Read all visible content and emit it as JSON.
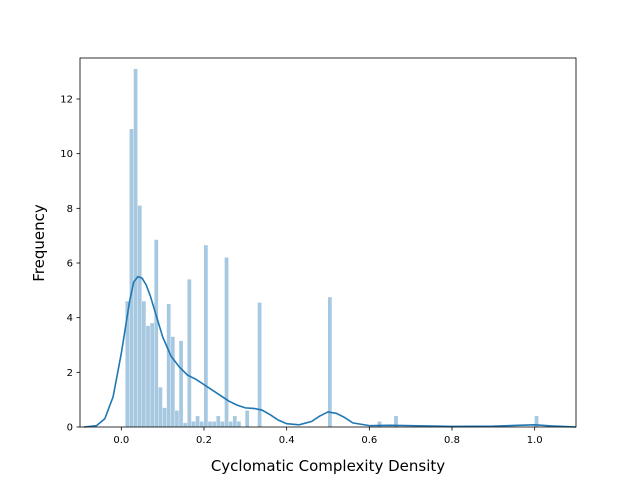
{
  "chart_data": {
    "type": "bar",
    "subtype": "histogram-with-kde",
    "title": "",
    "xlabel": "Cyclomatic Complexity Density",
    "ylabel": "Frequency",
    "xlim": [
      -0.1,
      1.1
    ],
    "ylim": [
      0,
      13.5
    ],
    "xticks": [
      "0.0",
      "0.2",
      "0.4",
      "0.6",
      "0.8",
      "1.0"
    ],
    "xtick_values": [
      0.0,
      0.2,
      0.4,
      0.6,
      0.8,
      1.0
    ],
    "yticks": [
      "0",
      "2",
      "4",
      "6",
      "8",
      "10",
      "12"
    ],
    "ytick_values": [
      0,
      2,
      4,
      6,
      8,
      10,
      12
    ],
    "grid": false,
    "bar_color": "#a6c8e0",
    "line_color": "#1f77b4",
    "bin_width": 0.01,
    "bins": [
      {
        "x": 0.01,
        "height": 4.6
      },
      {
        "x": 0.02,
        "height": 10.9
      },
      {
        "x": 0.03,
        "height": 13.1
      },
      {
        "x": 0.04,
        "height": 8.1
      },
      {
        "x": 0.05,
        "height": 4.6
      },
      {
        "x": 0.06,
        "height": 3.7
      },
      {
        "x": 0.07,
        "height": 3.8
      },
      {
        "x": 0.08,
        "height": 6.85
      },
      {
        "x": 0.09,
        "height": 1.45
      },
      {
        "x": 0.1,
        "height": 0.7
      },
      {
        "x": 0.11,
        "height": 4.5
      },
      {
        "x": 0.12,
        "height": 3.3
      },
      {
        "x": 0.13,
        "height": 0.6
      },
      {
        "x": 0.14,
        "height": 3.15
      },
      {
        "x": 0.15,
        "height": 0.15
      },
      {
        "x": 0.16,
        "height": 5.4
      },
      {
        "x": 0.17,
        "height": 0.2
      },
      {
        "x": 0.18,
        "height": 0.4
      },
      {
        "x": 0.19,
        "height": 0.2
      },
      {
        "x": 0.2,
        "height": 6.65
      },
      {
        "x": 0.21,
        "height": 0.2
      },
      {
        "x": 0.22,
        "height": 0.2
      },
      {
        "x": 0.23,
        "height": 0.4
      },
      {
        "x": 0.24,
        "height": 0.2
      },
      {
        "x": 0.25,
        "height": 6.2
      },
      {
        "x": 0.26,
        "height": 0.2
      },
      {
        "x": 0.27,
        "height": 0.4
      },
      {
        "x": 0.28,
        "height": 0.2
      },
      {
        "x": 0.3,
        "height": 0.6
      },
      {
        "x": 0.33,
        "height": 4.55
      },
      {
        "x": 0.5,
        "height": 4.75
      },
      {
        "x": 0.62,
        "height": 0.2
      },
      {
        "x": 0.66,
        "height": 0.4
      },
      {
        "x": 1.0,
        "height": 0.4
      }
    ],
    "kde": {
      "x": [
        -0.09,
        -0.06,
        -0.04,
        -0.02,
        0.0,
        0.02,
        0.03,
        0.04,
        0.05,
        0.06,
        0.07,
        0.08,
        0.1,
        0.12,
        0.14,
        0.16,
        0.18,
        0.2,
        0.22,
        0.24,
        0.26,
        0.28,
        0.3,
        0.32,
        0.34,
        0.36,
        0.38,
        0.4,
        0.43,
        0.46,
        0.48,
        0.5,
        0.52,
        0.54,
        0.56,
        0.6,
        0.65,
        0.7,
        0.8,
        0.9,
        0.96,
        1.0,
        1.04,
        1.1
      ],
      "y": [
        0.0,
        0.05,
        0.3,
        1.1,
        2.7,
        4.6,
        5.3,
        5.5,
        5.45,
        5.2,
        4.8,
        4.3,
        3.3,
        2.6,
        2.2,
        1.9,
        1.75,
        1.55,
        1.35,
        1.15,
        0.95,
        0.8,
        0.7,
        0.68,
        0.62,
        0.45,
        0.25,
        0.12,
        0.08,
        0.2,
        0.4,
        0.55,
        0.5,
        0.35,
        0.15,
        0.05,
        0.06,
        0.05,
        0.02,
        0.03,
        0.06,
        0.08,
        0.04,
        0.0
      ]
    }
  }
}
